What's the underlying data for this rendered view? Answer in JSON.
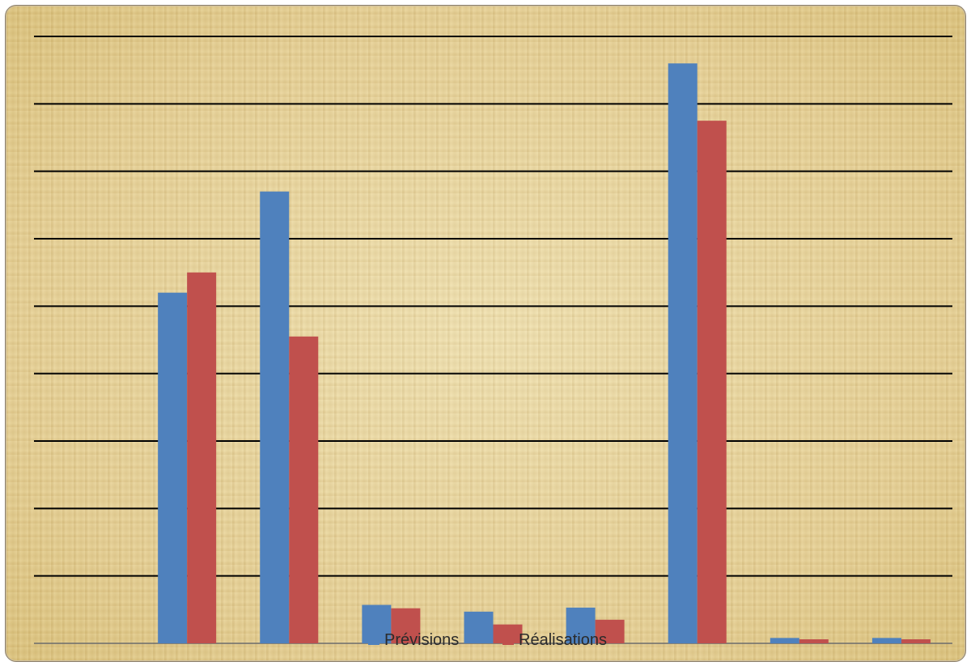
{
  "chart_data": {
    "type": "bar",
    "title": "",
    "xlabel": "",
    "ylabel": "",
    "ylim": [
      0,
      9
    ],
    "grid": true,
    "legend_position": "bottom",
    "categories": [
      "",
      "",
      "",
      "",
      "",
      "",
      "",
      "",
      ""
    ],
    "series": [
      {
        "name": "Prévisions",
        "color": "#4f81bd",
        "values": [
          0,
          5.2,
          6.7,
          0.57,
          0.47,
          0.53,
          8.6,
          0.08,
          0.08
        ]
      },
      {
        "name": "Réalisations",
        "color": "#c0504d",
        "values": [
          0,
          5.5,
          4.55,
          0.52,
          0.28,
          0.35,
          7.75,
          0.06,
          0.06
        ]
      }
    ]
  }
}
